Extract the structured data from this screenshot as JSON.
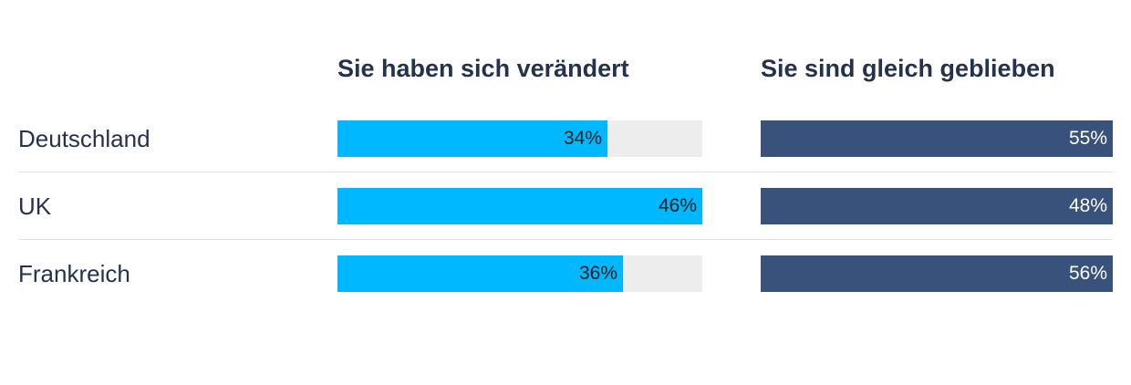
{
  "chart_data": {
    "type": "bar",
    "orientation": "horizontal",
    "categories": [
      "Deutschland",
      "UK",
      "Frankreich"
    ],
    "series": [
      {
        "name": "Sie haben sich verändert",
        "values": [
          34,
          46,
          36
        ],
        "labels": [
          "34%",
          "46%",
          "36%"
        ],
        "color": "#00b8ff",
        "label_color": "#1b1b1b"
      },
      {
        "name": "Sie sind gleich geblieben",
        "values": [
          55,
          48,
          56
        ],
        "labels": [
          "55%",
          "48%",
          "56%"
        ],
        "color": "#39527b",
        "label_color": "#ffffff"
      }
    ],
    "xlim": [
      0,
      46
    ],
    "unit": "%",
    "track_color": "#ededed",
    "text_color": "#25324d"
  }
}
